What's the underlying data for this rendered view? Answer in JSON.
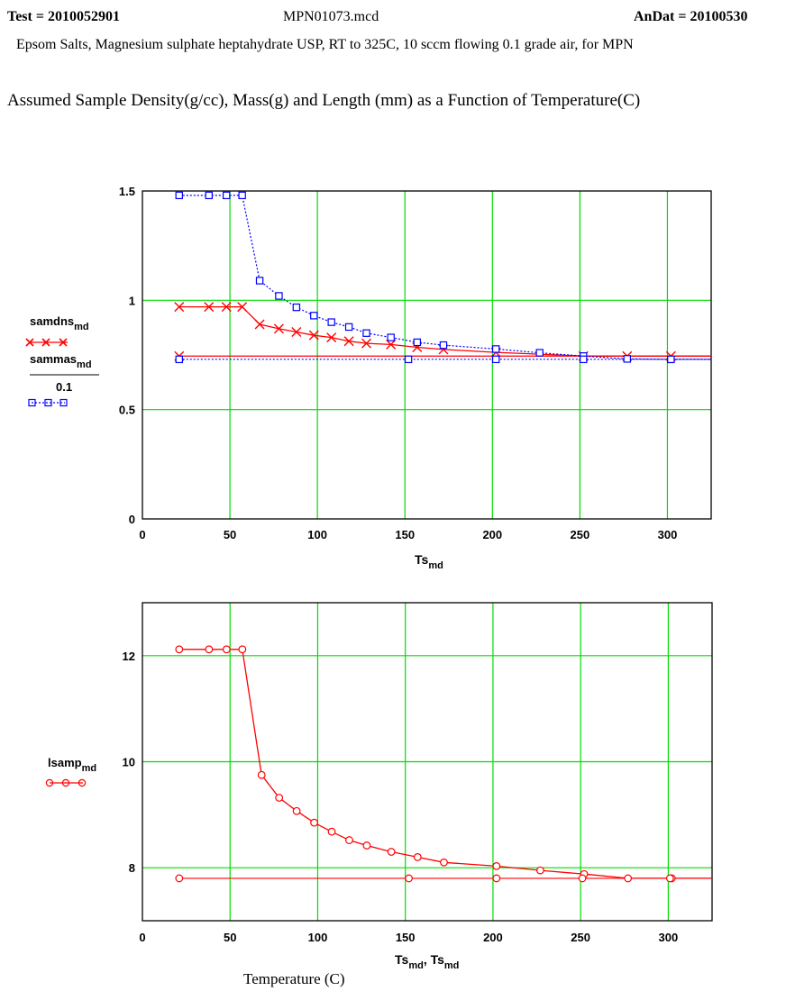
{
  "header": {
    "test_prefix": "Test = ",
    "test_value": "2010052901",
    "file_name": "MPN01073.mcd",
    "andat_prefix": "AnDat = ",
    "andat_value": "20100530",
    "description": "Epsom Salts, Magnesium sulphate heptahydrate USP, RT to 325C, 10 sccm flowing 0.1 grade air, for MPN",
    "heading": "Assumed Sample Density(g/cc),  Mass(g)  and Length (mm)  as a Function of Temperature(C)"
  },
  "footer_label": "Temperature (C)",
  "colors": {
    "grid": "#00dd00",
    "red": "#ff0000",
    "blue": "#0000ff"
  },
  "chart_data": [
    {
      "type": "line",
      "xlim": [
        0,
        325
      ],
      "ylim": [
        0,
        1.5
      ],
      "xticks": [
        "0",
        "50",
        "100",
        "150",
        "200",
        "250",
        "300"
      ],
      "yticks": [
        "0",
        "0.5",
        "1",
        "1.5"
      ],
      "xlabel": {
        "main": "Ts",
        "sub": "md"
      },
      "legend": {
        "series1_main": "samdns",
        "series1_sub": "md",
        "series2_main": "sammas",
        "series2_sub": "md",
        "series2_divisor": "0.1"
      },
      "series": [
        {
          "name": "samdns_md",
          "color": "#ff0000",
          "marker": "x",
          "dash": false,
          "x": [
            21,
            38,
            48,
            57,
            67,
            78,
            88,
            98,
            108,
            118,
            128,
            142,
            157,
            172,
            202,
            252,
            277,
            302,
            325
          ],
          "y": [
            0.97,
            0.97,
            0.97,
            0.97,
            0.89,
            0.87,
            0.855,
            0.84,
            0.83,
            0.813,
            0.803,
            0.798,
            0.785,
            0.775,
            0.762,
            0.745,
            0.745,
            0.745,
            0.745
          ],
          "baseline": {
            "x": [
              21,
              325
            ],
            "y": [
              0.745,
              0.745
            ]
          }
        },
        {
          "name": "sammas_md / 0.1",
          "color": "#0000ff",
          "marker": "square",
          "dash": true,
          "x": [
            21,
            38,
            48,
            57,
            67,
            78,
            88,
            98,
            108,
            118,
            128,
            142,
            157,
            172,
            202,
            227,
            252,
            277,
            302,
            325
          ],
          "y": [
            1.48,
            1.48,
            1.48,
            1.48,
            1.09,
            1.02,
            0.968,
            0.93,
            0.9,
            0.878,
            0.85,
            0.83,
            0.808,
            0.795,
            0.777,
            0.76,
            0.745,
            0.732,
            0.73,
            0.73
          ],
          "baseline": {
            "x": [
              21,
              325
            ],
            "y": [
              0.73,
              0.73
            ]
          },
          "extra_markers": {
            "x": [
              152,
              202,
              252,
              302
            ],
            "y": [
              0.73,
              0.73,
              0.73,
              0.73
            ]
          }
        }
      ]
    },
    {
      "type": "line",
      "xlim": [
        0,
        325
      ],
      "ylim": [
        7,
        13
      ],
      "xticks": [
        "0",
        "50",
        "100",
        "150",
        "200",
        "250",
        "300"
      ],
      "yticks": [
        "8",
        "10",
        "12"
      ],
      "xlabel": {
        "main1": "Ts",
        "sub1": "md",
        "sep": ", ",
        "main2": "Ts",
        "sub2": "md"
      },
      "legend": {
        "series1_main": "lsamp",
        "series1_sub": "md"
      },
      "series": [
        {
          "name": "lsamp_md",
          "color": "#ff0000",
          "marker": "circle",
          "dash": false,
          "x": [
            21,
            38,
            48,
            57,
            68,
            78,
            88,
            98,
            108,
            118,
            128,
            142,
            157,
            172,
            202,
            227,
            252,
            277,
            302,
            325
          ],
          "y": [
            12.12,
            12.12,
            12.12,
            12.12,
            9.75,
            9.32,
            9.07,
            8.85,
            8.68,
            8.52,
            8.42,
            8.3,
            8.2,
            8.1,
            8.03,
            7.95,
            7.88,
            7.8,
            7.8,
            7.8
          ],
          "baseline": {
            "x": [
              21,
              325
            ],
            "y": [
              7.8,
              7.8
            ]
          },
          "extra_markers": {
            "x": [
              152,
              202,
              251,
              301
            ],
            "y": [
              7.8,
              7.8,
              7.8,
              7.8
            ]
          }
        }
      ]
    }
  ]
}
